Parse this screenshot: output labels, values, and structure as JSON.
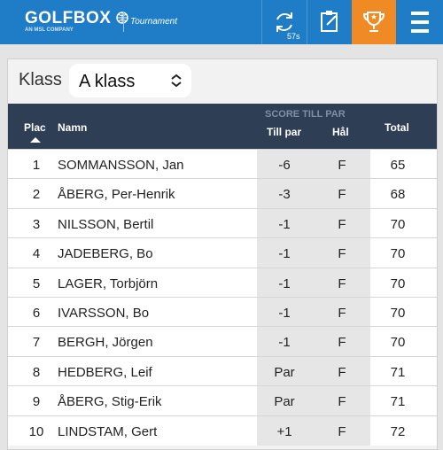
{
  "header": {
    "logo": "GOLFBOX",
    "tagline": "AN MSL COMPANY",
    "product": "Tournament",
    "timer": "57s"
  },
  "filter": {
    "label": "Klass",
    "value": "A klass"
  },
  "table": {
    "group_header": "SCORE TILL PAR",
    "columns": [
      "Plac",
      "Namn",
      "Till par",
      "Hål",
      "Total"
    ],
    "rows": [
      [
        "1",
        "SOMMANSSON, Jan",
        "-6",
        "F",
        "65"
      ],
      [
        "2",
        "ÅBERG, Per-Henrik",
        "-3",
        "F",
        "68"
      ],
      [
        "3",
        "NILSSON, Bertil",
        "-1",
        "F",
        "70"
      ],
      [
        "4",
        "JADEBERG, Bo",
        "-1",
        "F",
        "70"
      ],
      [
        "5",
        "LAGER, Torbjörn",
        "-1",
        "F",
        "70"
      ],
      [
        "6",
        "IVARSSON, Bo",
        "-1",
        "F",
        "70"
      ],
      [
        "7",
        "BERGH, Jörgen",
        "-1",
        "F",
        "70"
      ],
      [
        "8",
        "HEDBERG, Leif",
        "Par",
        "F",
        "71"
      ],
      [
        "9",
        "ÅBERG, Stig-Erik",
        "Par",
        "F",
        "71"
      ],
      [
        "10",
        "LINDSTAM, Gert",
        "+1",
        "F",
        "72"
      ]
    ]
  }
}
